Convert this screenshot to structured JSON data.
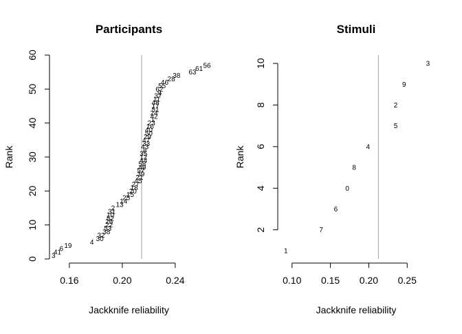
{
  "chart_data": [
    {
      "type": "scatter",
      "marker": "text-label",
      "title": "Participants",
      "xlabel": "Jackknife reliability",
      "ylabel": "Rank",
      "xlim": [
        0.145,
        0.265
      ],
      "ylim": [
        0,
        60
      ],
      "xticks": [
        0.16,
        0.2,
        0.24
      ],
      "xtick_labels": [
        "0.16",
        "0.20",
        "0.24"
      ],
      "yticks": [
        0,
        10,
        20,
        30,
        40,
        50,
        60
      ],
      "ytick_labels": [
        "0",
        "10",
        "20",
        "30",
        "40",
        "50",
        "60"
      ],
      "reference_line_x": 0.2146,
      "grid": false,
      "points": [
        {
          "label": "3",
          "x": 0.148,
          "y": 1
        },
        {
          "label": "41",
          "x": 0.151,
          "y": 2
        },
        {
          "label": "6",
          "x": 0.154,
          "y": 3
        },
        {
          "label": "19",
          "x": 0.159,
          "y": 4
        },
        {
          "label": "4",
          "x": 0.177,
          "y": 5
        },
        {
          "label": "30",
          "x": 0.183,
          "y": 6
        },
        {
          "label": "32",
          "x": 0.184,
          "y": 7
        },
        {
          "label": "38",
          "x": 0.188,
          "y": 8
        },
        {
          "label": "53",
          "x": 0.189,
          "y": 9
        },
        {
          "label": "22",
          "x": 0.19,
          "y": 10
        },
        {
          "label": "26",
          "x": 0.19,
          "y": 11
        },
        {
          "label": "52",
          "x": 0.191,
          "y": 12
        },
        {
          "label": "10",
          "x": 0.191,
          "y": 13
        },
        {
          "label": "31",
          "x": 0.192,
          "y": 14
        },
        {
          "label": "2",
          "x": 0.193,
          "y": 15
        },
        {
          "label": "13",
          "x": 0.198,
          "y": 16
        },
        {
          "label": "14",
          "x": 0.201,
          "y": 17
        },
        {
          "label": "25",
          "x": 0.203,
          "y": 18
        },
        {
          "label": "15",
          "x": 0.206,
          "y": 19
        },
        {
          "label": "20",
          "x": 0.208,
          "y": 20
        },
        {
          "label": "18",
          "x": 0.209,
          "y": 21
        },
        {
          "label": "27",
          "x": 0.21,
          "y": 22
        },
        {
          "label": "45",
          "x": 0.212,
          "y": 23
        },
        {
          "label": "21",
          "x": 0.213,
          "y": 24
        },
        {
          "label": "39",
          "x": 0.214,
          "y": 25
        },
        {
          "label": "57",
          "x": 0.214,
          "y": 26
        },
        {
          "label": "49",
          "x": 0.215,
          "y": 27
        },
        {
          "label": "58",
          "x": 0.215,
          "y": 28
        },
        {
          "label": "44",
          "x": 0.216,
          "y": 29
        },
        {
          "label": "12",
          "x": 0.216,
          "y": 30
        },
        {
          "label": "35",
          "x": 0.216,
          "y": 31
        },
        {
          "label": "8",
          "x": 0.217,
          "y": 32
        },
        {
          "label": "43",
          "x": 0.217,
          "y": 33
        },
        {
          "label": "33",
          "x": 0.218,
          "y": 34
        },
        {
          "label": "47",
          "x": 0.218,
          "y": 35
        },
        {
          "label": "29",
          "x": 0.219,
          "y": 36
        },
        {
          "label": "50",
          "x": 0.22,
          "y": 37
        },
        {
          "label": "40",
          "x": 0.22,
          "y": 38
        },
        {
          "label": "16",
          "x": 0.221,
          "y": 39
        },
        {
          "label": "23",
          "x": 0.222,
          "y": 40
        },
        {
          "label": "1",
          "x": 0.223,
          "y": 41
        },
        {
          "label": "42",
          "x": 0.224,
          "y": 42
        },
        {
          "label": "24",
          "x": 0.224,
          "y": 43
        },
        {
          "label": "51",
          "x": 0.225,
          "y": 44
        },
        {
          "label": "17",
          "x": 0.225,
          "y": 45
        },
        {
          "label": "48",
          "x": 0.225,
          "y": 46
        },
        {
          "label": "11",
          "x": 0.226,
          "y": 47
        },
        {
          "label": "37",
          "x": 0.227,
          "y": 48
        },
        {
          "label": "9",
          "x": 0.228,
          "y": 49
        },
        {
          "label": "62",
          "x": 0.228,
          "y": 50
        },
        {
          "label": "55",
          "x": 0.23,
          "y": 51
        },
        {
          "label": "46",
          "x": 0.232,
          "y": 52
        },
        {
          "label": "28",
          "x": 0.237,
          "y": 53
        },
        {
          "label": "38",
          "x": 0.241,
          "y": 54
        },
        {
          "label": "63",
          "x": 0.253,
          "y": 55
        },
        {
          "label": "61",
          "x": 0.258,
          "y": 56
        },
        {
          "label": "56",
          "x": 0.264,
          "y": 57
        }
      ]
    },
    {
      "type": "scatter",
      "marker": "text-label",
      "title": "Stimuli",
      "xlabel": "Jackknife reliability",
      "ylabel": "Rank",
      "xlim": [
        0.085,
        0.282
      ],
      "ylim": [
        0.6,
        10.4
      ],
      "xticks": [
        0.1,
        0.15,
        0.2,
        0.25
      ],
      "xtick_labels": [
        "0.10",
        "0.15",
        "0.20",
        "0.25"
      ],
      "yticks": [
        2,
        4,
        6,
        8,
        10
      ],
      "ytick_labels": [
        "2",
        "4",
        "6",
        "8",
        "10"
      ],
      "reference_line_x": 0.2125,
      "grid": false,
      "points": [
        {
          "label": "1",
          "x": 0.092,
          "y": 1
        },
        {
          "label": "7",
          "x": 0.138,
          "y": 2
        },
        {
          "label": "6",
          "x": 0.157,
          "y": 3
        },
        {
          "label": "0",
          "x": 0.172,
          "y": 4
        },
        {
          "label": "8",
          "x": 0.181,
          "y": 5
        },
        {
          "label": "4",
          "x": 0.199,
          "y": 6
        },
        {
          "label": "5",
          "x": 0.235,
          "y": 7
        },
        {
          "label": "2",
          "x": 0.235,
          "y": 8
        },
        {
          "label": "9",
          "x": 0.246,
          "y": 9
        },
        {
          "label": "3",
          "x": 0.277,
          "y": 10
        }
      ]
    }
  ]
}
